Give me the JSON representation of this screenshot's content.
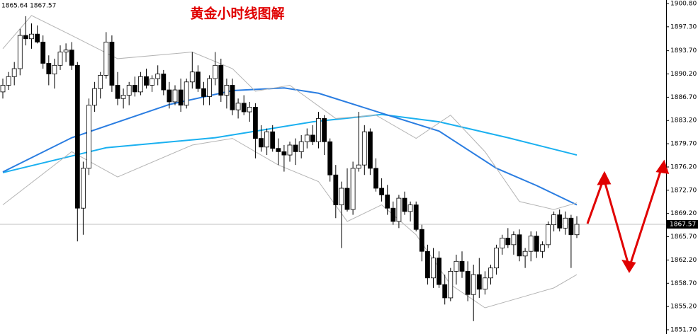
{
  "chart_data": {
    "type": "candlestick",
    "title": "黄金小时线图解",
    "header": "1865.64 1867.57",
    "ylim": [
      1851.7,
      1900.8
    ],
    "yticks": [
      {
        "value": 1851.7,
        "label": "1851.70"
      },
      {
        "value": 1855.2,
        "label": "1855.20"
      },
      {
        "value": 1858.7,
        "label": "1858.70"
      },
      {
        "value": 1862.2,
        "label": "1862.20"
      },
      {
        "value": 1865.7,
        "label": "1865.70"
      },
      {
        "value": 1869.2,
        "label": "1869.20"
      },
      {
        "value": 1872.7,
        "label": "1872.70"
      },
      {
        "value": 1876.2,
        "label": "1876.20"
      },
      {
        "value": 1879.7,
        "label": "1879.70"
      },
      {
        "value": 1883.2,
        "label": "1883.20"
      },
      {
        "value": 1886.7,
        "label": "1886.70"
      },
      {
        "value": 1890.2,
        "label": "1890.20"
      },
      {
        "value": 1893.7,
        "label": "1893.70"
      },
      {
        "value": 1897.3,
        "label": "1897.30"
      },
      {
        "value": 1900.8,
        "label": "1900.80"
      }
    ],
    "current_price": 1867.57,
    "open": [
      1887.5,
      1888.5,
      1889.8,
      1891.0,
      1896.0,
      1895.5,
      1896.2,
      1895.0,
      1891.8,
      1890.2,
      1891.5,
      1893.5,
      1893.8,
      1891.5,
      1870.0,
      1876.0,
      1885.5,
      1888.0,
      1890.0,
      1895.0,
      1888.5,
      1886.5,
      1887.0,
      1888.5,
      1887.5,
      1889.8,
      1888.5,
      1889.5,
      1890.2,
      1887.8,
      1886.0,
      1887.8,
      1885.5,
      1889.0,
      1890.5,
      1888.0,
      1886.8,
      1889.5,
      1891.5,
      1887.0,
      1888.5,
      1884.8,
      1885.8,
      1884.5,
      1885.2,
      1880.5,
      1879.2,
      1881.5,
      1879.0,
      1878.5,
      1878.0,
      1879.5,
      1878.5,
      1880.0,
      1881.0,
      1880.0,
      1883.5,
      1880.0,
      1875.0,
      1870.5,
      1873.0,
      1869.8,
      1876.0,
      1876.5,
      1881.5,
      1876.0,
      1873.0,
      1872.0,
      1870.0,
      1868.0,
      1871.5,
      1869.5,
      1870.5,
      1866.8,
      1863.5,
      1859.5,
      1862.5,
      1858.5,
      1856.5,
      1860.5,
      1862.0,
      1860.5,
      1857.0,
      1860.0,
      1857.8,
      1859.5,
      1861.0,
      1864.0,
      1865.5,
      1864.5,
      1866.0,
      1862.8,
      1863.5,
      1865.8,
      1863.5,
      1864.5,
      1867.5,
      1869.0,
      1867.0,
      1868.5,
      1866.0
    ],
    "high": [
      1889.5,
      1890.5,
      1892.0,
      1897.0,
      1898.9,
      1897.8,
      1897.5,
      1896.0,
      1893.0,
      1892.5,
      1894.5,
      1894.8,
      1895.0,
      1892.0,
      1877.0,
      1886.5,
      1889.0,
      1890.5,
      1896.5,
      1896.0,
      1890.5,
      1888.0,
      1889.0,
      1889.8,
      1890.5,
      1891.0,
      1890.0,
      1891.5,
      1890.8,
      1889.0,
      1888.5,
      1889.5,
      1889.5,
      1893.5,
      1891.5,
      1889.0,
      1890.0,
      1893.5,
      1892.5,
      1889.5,
      1889.5,
      1886.5,
      1887.0,
      1886.0,
      1885.8,
      1882.5,
      1882.0,
      1882.5,
      1880.5,
      1879.5,
      1880.0,
      1880.5,
      1881.0,
      1882.0,
      1882.5,
      1884.5,
      1884.0,
      1880.5,
      1876.5,
      1874.0,
      1876.0,
      1877.0,
      1884.5,
      1882.5,
      1882.0,
      1877.5,
      1874.5,
      1873.5,
      1871.0,
      1872.0,
      1872.5,
      1871.0,
      1871.0,
      1867.5,
      1864.5,
      1864.0,
      1863.5,
      1860.0,
      1861.0,
      1863.0,
      1863.5,
      1862.0,
      1861.5,
      1862.5,
      1860.5,
      1861.5,
      1864.5,
      1866.0,
      1867.0,
      1866.5,
      1866.8,
      1864.0,
      1866.5,
      1866.5,
      1865.0,
      1868.0,
      1869.5,
      1869.8,
      1869.5,
      1869.0,
      1868.8
    ],
    "low": [
      1886.5,
      1887.8,
      1888.5,
      1890.0,
      1894.5,
      1894.0,
      1894.8,
      1891.0,
      1888.5,
      1888.0,
      1890.8,
      1892.0,
      1890.8,
      1865.0,
      1866.0,
      1875.0,
      1884.5,
      1886.5,
      1889.5,
      1887.5,
      1885.5,
      1885.0,
      1885.5,
      1886.8,
      1887.0,
      1888.0,
      1887.5,
      1888.5,
      1887.0,
      1885.0,
      1885.5,
      1884.5,
      1885.0,
      1888.0,
      1887.5,
      1885.5,
      1885.5,
      1888.5,
      1886.0,
      1885.0,
      1884.0,
      1883.5,
      1884.0,
      1883.0,
      1877.5,
      1878.5,
      1878.0,
      1878.5,
      1876.5,
      1875.5,
      1877.0,
      1876.5,
      1877.5,
      1879.0,
      1879.5,
      1879.0,
      1878.0,
      1874.0,
      1868.5,
      1864.0,
      1869.5,
      1869.0,
      1875.5,
      1875.0,
      1875.0,
      1872.5,
      1871.0,
      1869.0,
      1867.5,
      1867.0,
      1869.0,
      1868.0,
      1866.5,
      1862.0,
      1858.5,
      1858.0,
      1858.0,
      1855.5,
      1856.0,
      1858.5,
      1859.5,
      1856.0,
      1853.0,
      1856.5,
      1857.0,
      1858.5,
      1860.0,
      1863.0,
      1864.0,
      1863.0,
      1862.0,
      1861.0,
      1862.0,
      1862.5,
      1862.5,
      1864.0,
      1866.5,
      1866.5,
      1866.0,
      1861.0,
      1865.5
    ],
    "close": [
      1888.5,
      1889.8,
      1891.0,
      1896.0,
      1895.5,
      1896.2,
      1895.0,
      1891.8,
      1890.2,
      1891.5,
      1893.5,
      1893.8,
      1891.5,
      1870.0,
      1876.0,
      1885.5,
      1888.0,
      1890.0,
      1895.0,
      1888.5,
      1886.5,
      1887.0,
      1888.5,
      1887.5,
      1889.8,
      1888.5,
      1889.5,
      1890.2,
      1887.8,
      1886.0,
      1887.8,
      1885.5,
      1889.0,
      1890.5,
      1888.0,
      1886.8,
      1889.5,
      1891.5,
      1887.0,
      1888.5,
      1884.8,
      1885.8,
      1884.5,
      1885.2,
      1880.5,
      1879.2,
      1881.5,
      1879.0,
      1878.5,
      1878.0,
      1879.5,
      1878.5,
      1880.0,
      1881.0,
      1880.0,
      1883.5,
      1880.0,
      1875.0,
      1870.5,
      1873.0,
      1869.8,
      1876.0,
      1876.5,
      1881.5,
      1876.0,
      1873.0,
      1872.0,
      1870.0,
      1868.0,
      1871.5,
      1869.5,
      1870.5,
      1866.8,
      1863.5,
      1859.5,
      1862.5,
      1858.5,
      1856.5,
      1860.5,
      1862.0,
      1860.5,
      1857.0,
      1860.0,
      1857.8,
      1859.5,
      1861.0,
      1864.0,
      1865.5,
      1864.5,
      1866.0,
      1862.8,
      1863.5,
      1865.8,
      1863.5,
      1864.5,
      1867.5,
      1869.0,
      1867.0,
      1868.5,
      1866.0,
      1867.57
    ],
    "indicators": [
      {
        "color": "#1ab0f0",
        "x": [
          0,
          18,
          37,
          54,
          66,
          76,
          88,
          100
        ],
        "values": [
          1875.35,
          1879.1,
          1880.6,
          1883.0,
          1884.1,
          1883.0,
          1880.6,
          1878.0
        ]
      },
      {
        "color": "#2a7de1",
        "x": [
          0,
          12,
          29,
          40,
          49,
          55,
          66,
          76,
          86,
          93,
          100
        ],
        "values": [
          1875.45,
          1880.6,
          1885.6,
          1887.7,
          1888.1,
          1887.3,
          1884.3,
          1881.6,
          1876.0,
          1873.4,
          1870.5
        ]
      },
      {
        "color": "#b4b4b4",
        "x": [
          0,
          5,
          12,
          20,
          33,
          40,
          44,
          50,
          58,
          65,
          72,
          78,
          84,
          90,
          96,
          100
        ],
        "values": [
          1894.0,
          1899.0,
          1896.0,
          1892.5,
          1893.5,
          1891.0,
          1887.6,
          1888.5,
          1883.5,
          1884.0,
          1880.5,
          1884.0,
          1878.5,
          1871.0,
          1869.8,
          1870.8
        ]
      },
      {
        "color": "#b4b4b4",
        "x": [
          0,
          12,
          20,
          33,
          40,
          48,
          55,
          60,
          66,
          72,
          78,
          84,
          90,
          96,
          100
        ],
        "values": [
          1870.5,
          1878.5,
          1874.7,
          1879.5,
          1880.5,
          1876.5,
          1874.0,
          1868.0,
          1870.5,
          1866.0,
          1858.5,
          1855.0,
          1856.5,
          1858.0,
          1860.0
        ]
      }
    ]
  }
}
